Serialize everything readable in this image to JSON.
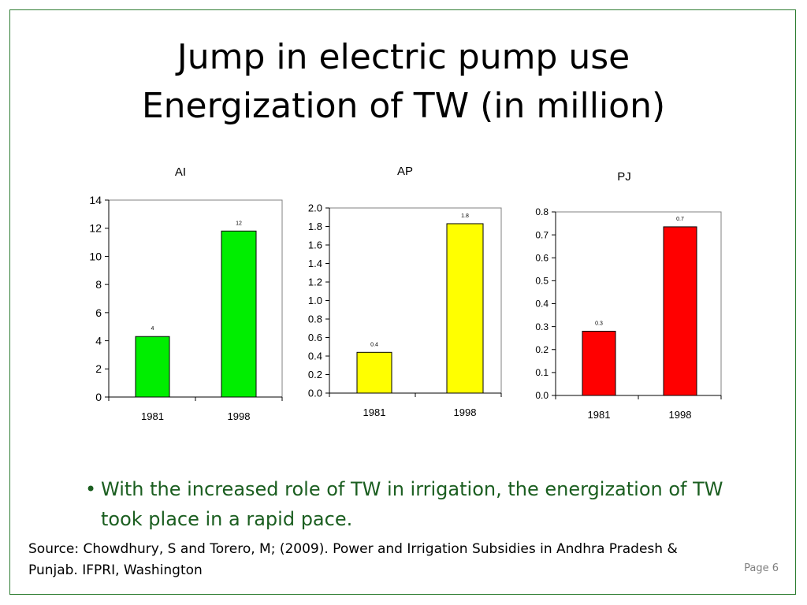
{
  "slide": {
    "title_line1": "Jump in electric pump use",
    "title_line2": "Energization of TW (in million)",
    "bullet_mark": "•",
    "bullet_text": "With the increased role of TW in irrigation, the energization of TW took place in a rapid pace.",
    "source": "Source: Chowdhury, S and Torero, M; (2009). Power and Irrigation Subsidies in Andhra Pradesh & Punjab. IFPRI, Washington",
    "page_label": "Page 6"
  },
  "colors": {
    "border": "#2e7d32",
    "bullet_text": "#1b5e20",
    "AI": "#00ee00",
    "AP": "#ffff00",
    "PJ": "#ff0000"
  },
  "chart_data": [
    {
      "type": "bar",
      "title": "AI",
      "categories": [
        "1981",
        "1998"
      ],
      "values": [
        4.3,
        11.8
      ],
      "data_labels": [
        "4",
        "12"
      ],
      "ylim": [
        0,
        14
      ],
      "yticks": [
        "0",
        "2",
        "4",
        "6",
        "8",
        "10",
        "12",
        "14"
      ],
      "color": "#00ee00",
      "grid": false,
      "legend": "none"
    },
    {
      "type": "bar",
      "title": "AP",
      "categories": [
        "1981",
        "1998"
      ],
      "values": [
        0.44,
        1.83
      ],
      "data_labels": [
        "0.4",
        "1.8"
      ],
      "ylim": [
        0,
        2.0
      ],
      "yticks": [
        "0.0",
        "0.2",
        "0.4",
        "0.6",
        "0.8",
        "1.0",
        "1.2",
        "1.4",
        "1.6",
        "1.8",
        "2.0"
      ],
      "color": "#ffff00",
      "grid": false,
      "legend": "none"
    },
    {
      "type": "bar",
      "title": "PJ",
      "categories": [
        "1981",
        "1998"
      ],
      "values": [
        0.28,
        0.735
      ],
      "data_labels": [
        "0.3",
        "0.7"
      ],
      "ylim": [
        0,
        0.8
      ],
      "yticks": [
        "0.0",
        "0.1",
        "0.2",
        "0.3",
        "0.4",
        "0.5",
        "0.6",
        "0.7",
        "0.8"
      ],
      "color": "#ff0000",
      "grid": false,
      "legend": "none"
    }
  ]
}
